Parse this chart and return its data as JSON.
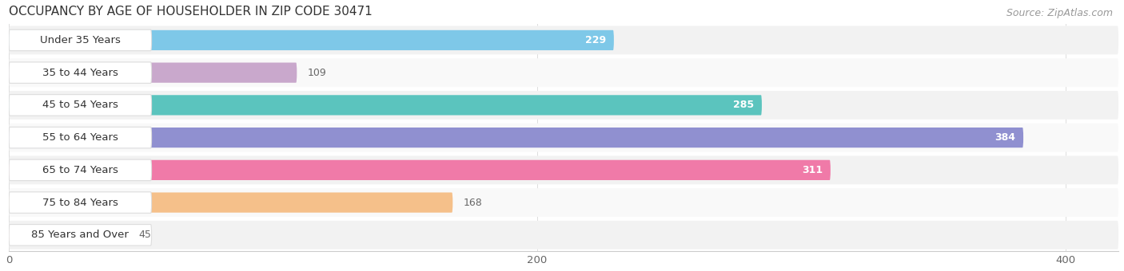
{
  "title": "OCCUPANCY BY AGE OF HOUSEHOLDER IN ZIP CODE 30471",
  "source": "Source: ZipAtlas.com",
  "categories": [
    "Under 35 Years",
    "35 to 44 Years",
    "45 to 54 Years",
    "55 to 64 Years",
    "65 to 74 Years",
    "75 to 84 Years",
    "85 Years and Over"
  ],
  "values": [
    229,
    109,
    285,
    384,
    311,
    168,
    45
  ],
  "bar_colors": [
    "#7EC8E8",
    "#C9A8CC",
    "#5BC4BE",
    "#9090D0",
    "#F07AA8",
    "#F5C08A",
    "#F0B0B0"
  ],
  "row_bg_color": "#EBEBEB",
  "xlim_max": 420,
  "xticks": [
    0,
    200,
    400
  ],
  "title_fontsize": 11,
  "label_fontsize": 9.5,
  "value_fontsize": 9,
  "source_fontsize": 9,
  "background_color": "#FFFFFF",
  "bar_height": 0.62
}
